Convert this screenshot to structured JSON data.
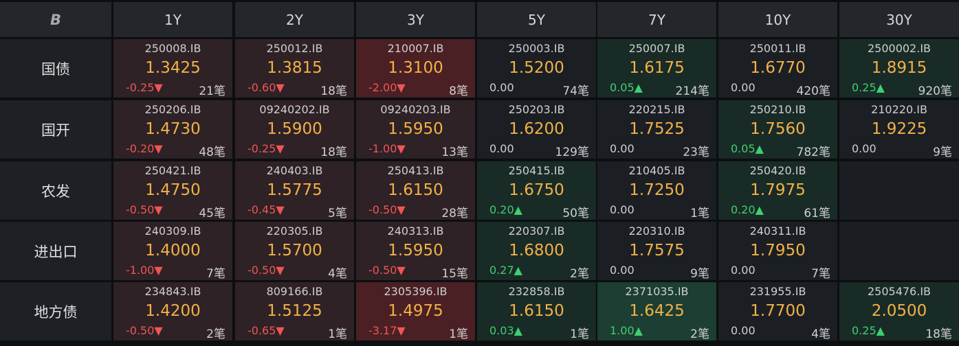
{
  "corner_icon": "b-logo-icon",
  "corner_text": "B",
  "columns": [
    "1Y",
    "2Y",
    "3Y",
    "5Y",
    "7Y",
    "10Y",
    "30Y"
  ],
  "colors": {
    "neg_strong": "#4a2024",
    "neg_weak": "#2e2226",
    "pos_strong": "#1c3e33",
    "pos_weak": "#192b27",
    "neutral": "#1b1f24",
    "empty": "#1a1d21"
  },
  "rows": [
    {
      "label": "国债",
      "cells": [
        {
          "code": "250008.IB",
          "yield": "1.3425",
          "chg": "-0.25▼",
          "dir": "neg",
          "count": "21笔",
          "tone": "neg_weak"
        },
        {
          "code": "250012.IB",
          "yield": "1.3815",
          "chg": "-0.60▼",
          "dir": "neg",
          "count": "18笔",
          "tone": "neg_weak"
        },
        {
          "code": "210007.IB",
          "yield": "1.3100",
          "chg": "-2.00▼",
          "dir": "neg",
          "count": "8笔",
          "tone": "neg_strong"
        },
        {
          "code": "250003.IB",
          "yield": "1.5200",
          "chg": "0.00",
          "dir": "zero",
          "count": "74笔",
          "tone": "neutral"
        },
        {
          "code": "250007.IB",
          "yield": "1.6175",
          "chg": "0.05▲",
          "dir": "pos",
          "count": "214笔",
          "tone": "pos_weak"
        },
        {
          "code": "250011.IB",
          "yield": "1.6770",
          "chg": "0.00",
          "dir": "zero",
          "count": "420笔",
          "tone": "neutral"
        },
        {
          "code": "2500002.IB",
          "yield": "1.8915",
          "chg": "0.25▲",
          "dir": "pos",
          "count": "920笔",
          "tone": "pos_weak"
        }
      ]
    },
    {
      "label": "国开",
      "cells": [
        {
          "code": "250206.IB",
          "yield": "1.4730",
          "chg": "-0.20▼",
          "dir": "neg",
          "count": "48笔",
          "tone": "neg_weak"
        },
        {
          "code": "09240202.IB",
          "yield": "1.5900",
          "chg": "-0.25▼",
          "dir": "neg",
          "count": "18笔",
          "tone": "neg_weak"
        },
        {
          "code": "09240203.IB",
          "yield": "1.5950",
          "chg": "-1.00▼",
          "dir": "neg",
          "count": "13笔",
          "tone": "neg_weak"
        },
        {
          "code": "250203.IB",
          "yield": "1.6200",
          "chg": "0.00",
          "dir": "zero",
          "count": "129笔",
          "tone": "neutral"
        },
        {
          "code": "220215.IB",
          "yield": "1.7525",
          "chg": "0.00",
          "dir": "zero",
          "count": "23笔",
          "tone": "neutral"
        },
        {
          "code": "250210.IB",
          "yield": "1.7560",
          "chg": "0.05▲",
          "dir": "pos",
          "count": "782笔",
          "tone": "pos_weak"
        },
        {
          "code": "210220.IB",
          "yield": "1.9225",
          "chg": "0.00",
          "dir": "zero",
          "count": "9笔",
          "tone": "neutral"
        }
      ]
    },
    {
      "label": "农发",
      "cells": [
        {
          "code": "250421.IB",
          "yield": "1.4750",
          "chg": "-0.50▼",
          "dir": "neg",
          "count": "45笔",
          "tone": "neg_weak"
        },
        {
          "code": "240403.IB",
          "yield": "1.5775",
          "chg": "-0.45▼",
          "dir": "neg",
          "count": "5笔",
          "tone": "neg_weak"
        },
        {
          "code": "250413.IB",
          "yield": "1.6150",
          "chg": "-0.50▼",
          "dir": "neg",
          "count": "28笔",
          "tone": "neg_weak"
        },
        {
          "code": "250415.IB",
          "yield": "1.6750",
          "chg": "0.20▲",
          "dir": "pos",
          "count": "50笔",
          "tone": "pos_weak"
        },
        {
          "code": "210405.IB",
          "yield": "1.7250",
          "chg": "0.00",
          "dir": "zero",
          "count": "1笔",
          "tone": "neutral"
        },
        {
          "code": "250420.IB",
          "yield": "1.7975",
          "chg": "0.20▲",
          "dir": "pos",
          "count": "61笔",
          "tone": "pos_weak"
        },
        null
      ]
    },
    {
      "label": "进出口",
      "cells": [
        {
          "code": "240309.IB",
          "yield": "1.4000",
          "chg": "-1.00▼",
          "dir": "neg",
          "count": "7笔",
          "tone": "neg_weak"
        },
        {
          "code": "220305.IB",
          "yield": "1.5700",
          "chg": "-0.50▼",
          "dir": "neg",
          "count": "4笔",
          "tone": "neg_weak"
        },
        {
          "code": "240313.IB",
          "yield": "1.5950",
          "chg": "-0.50▼",
          "dir": "neg",
          "count": "15笔",
          "tone": "neg_weak"
        },
        {
          "code": "220307.IB",
          "yield": "1.6800",
          "chg": "0.27▲",
          "dir": "pos",
          "count": "2笔",
          "tone": "pos_weak"
        },
        {
          "code": "220310.IB",
          "yield": "1.7575",
          "chg": "0.00",
          "dir": "zero",
          "count": "9笔",
          "tone": "neutral"
        },
        {
          "code": "240311.IB",
          "yield": "1.7950",
          "chg": "0.00",
          "dir": "zero",
          "count": "7笔",
          "tone": "neutral"
        },
        null
      ]
    },
    {
      "label": "地方债",
      "cells": [
        {
          "code": "234843.IB",
          "yield": "1.4200",
          "chg": "-0.50▼",
          "dir": "neg",
          "count": "2笔",
          "tone": "neg_weak"
        },
        {
          "code": "809166.IB",
          "yield": "1.5125",
          "chg": "-0.65▼",
          "dir": "neg",
          "count": "1笔",
          "tone": "neg_weak"
        },
        {
          "code": "2305396.IB",
          "yield": "1.4975",
          "chg": "-3.17▼",
          "dir": "neg",
          "count": "1笔",
          "tone": "neg_strong"
        },
        {
          "code": "232858.IB",
          "yield": "1.6150",
          "chg": "0.03▲",
          "dir": "pos",
          "count": "1笔",
          "tone": "pos_weak"
        },
        {
          "code": "2371035.IB",
          "yield": "1.6425",
          "chg": "1.00▲",
          "dir": "pos",
          "count": "2笔",
          "tone": "pos_strong"
        },
        {
          "code": "231955.IB",
          "yield": "1.7700",
          "chg": "0.00",
          "dir": "zero",
          "count": "4笔",
          "tone": "neutral"
        },
        {
          "code": "2505476.IB",
          "yield": "2.0500",
          "chg": "0.25▲",
          "dir": "pos",
          "count": "18笔",
          "tone": "pos_weak"
        }
      ]
    }
  ]
}
